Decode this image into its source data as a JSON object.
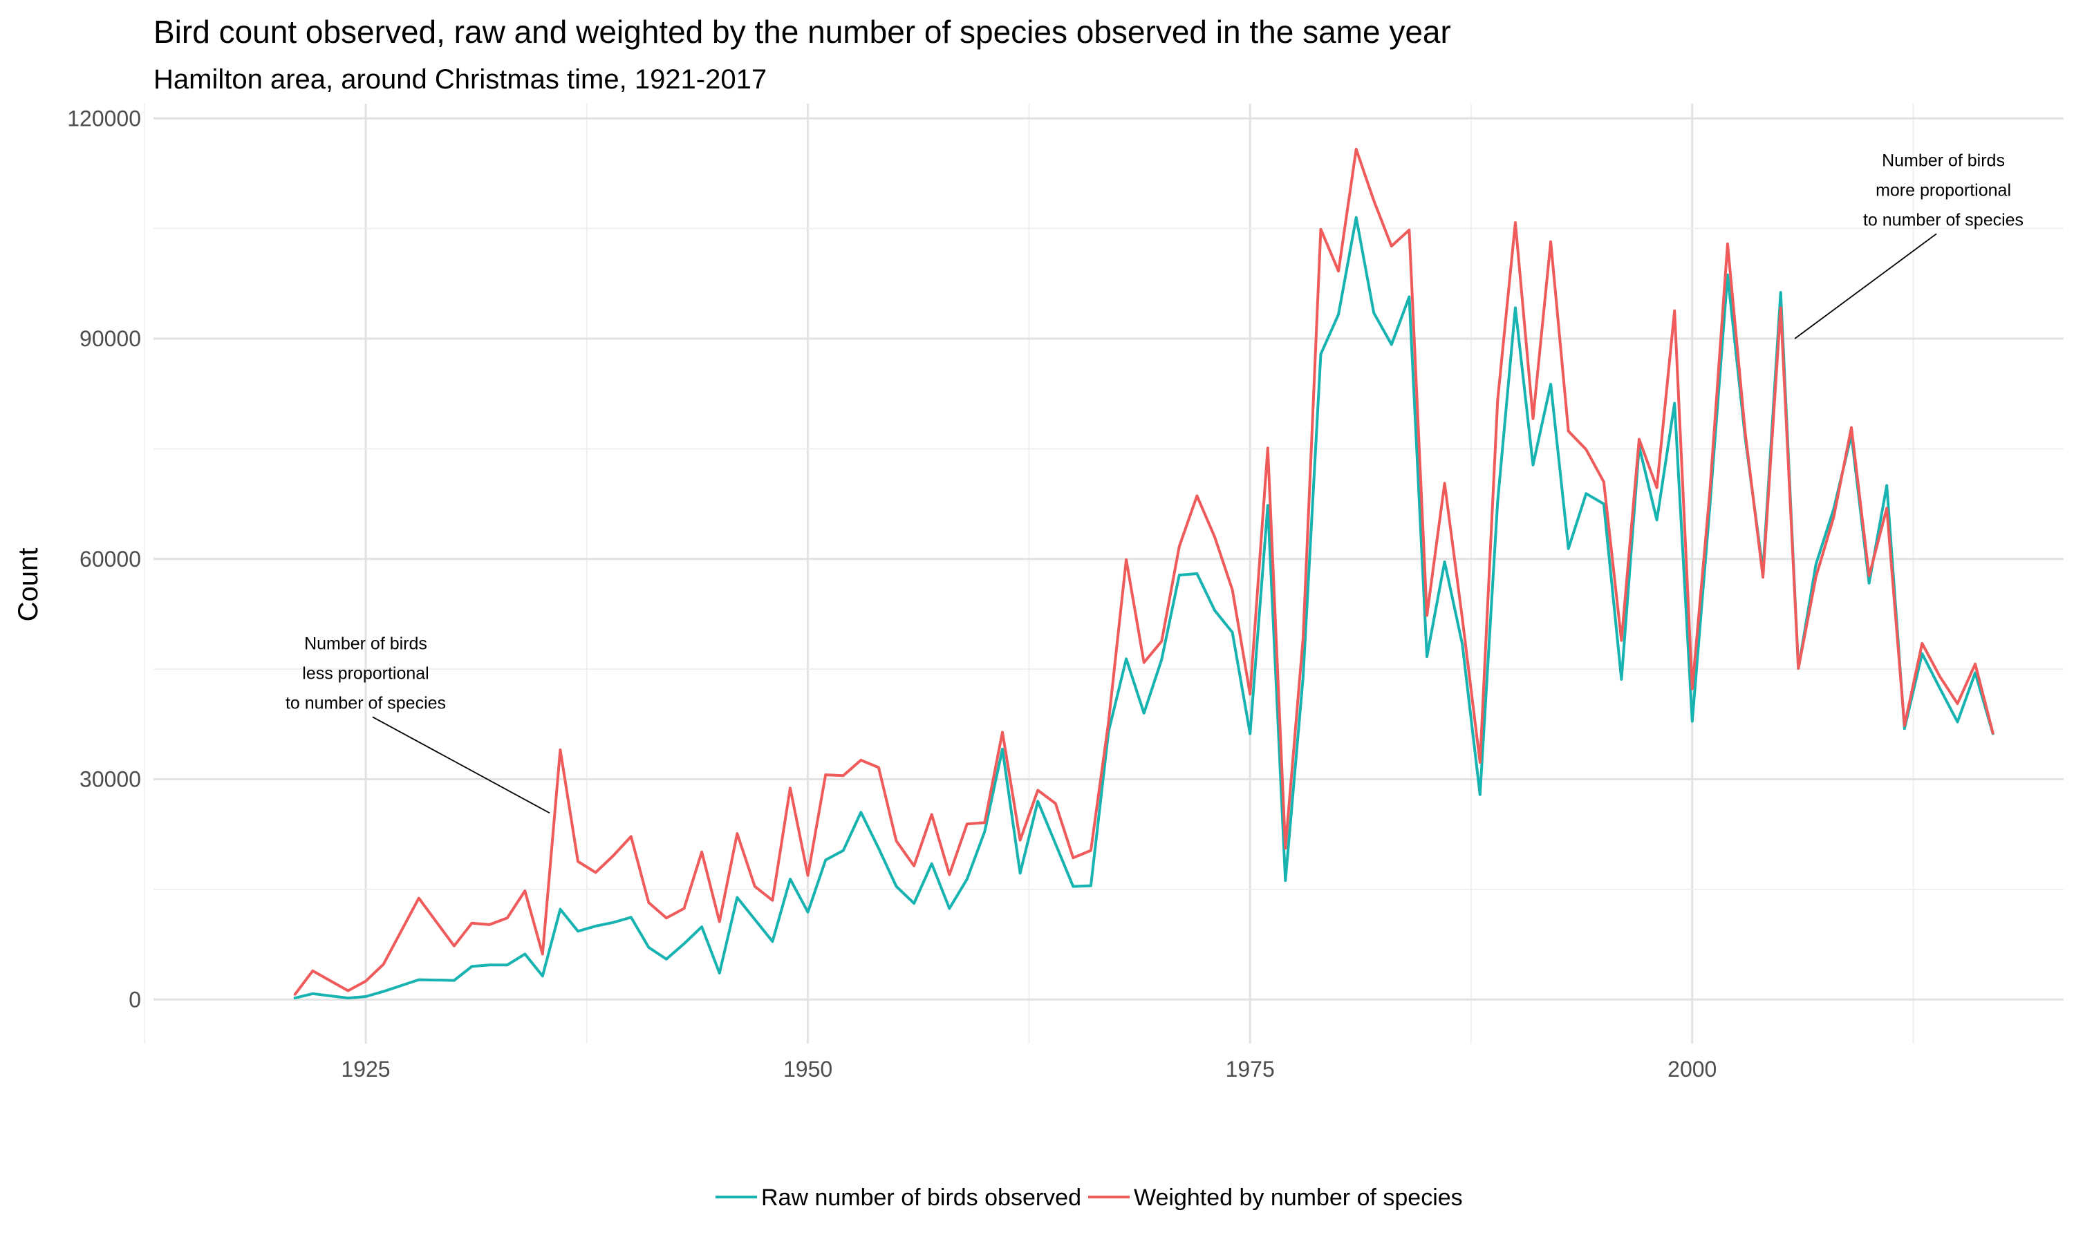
{
  "chart_data": {
    "type": "line",
    "title": "Bird count observed, raw and weighted by the number of species observed in the same year",
    "subtitle": "Hamilton area, around Christmas time, 1921-2017",
    "xlabel": "",
    "ylabel": "Count",
    "xlim": [
      1913,
      2021
    ],
    "ylim": [
      -6000,
      122000
    ],
    "x_ticks": [
      1925,
      1950,
      1975,
      2000
    ],
    "y_ticks": [
      0,
      30000,
      60000,
      90000,
      120000
    ],
    "x_tick_labels": [
      "1925",
      "1950",
      "1975",
      "2000"
    ],
    "y_tick_labels": [
      "0",
      "30000",
      "60000",
      "90000",
      "120000"
    ],
    "grid": true,
    "legend_position": "bottom",
    "series": [
      {
        "name": "Raw number of birds observed",
        "color": "#17b3b0",
        "x": [
          1921,
          1922,
          1924,
          1925,
          1926,
          1928,
          1930,
          1931,
          1932,
          1933,
          1934,
          1935,
          1936,
          1937,
          1938,
          1939,
          1940,
          1941,
          1942,
          1943,
          1944,
          1945,
          1946,
          1947,
          1948,
          1949,
          1950,
          1951,
          1952,
          1953,
          1954,
          1955,
          1956,
          1957,
          1958,
          1959,
          1960,
          1961,
          1962,
          1963,
          1964,
          1965,
          1966,
          1967,
          1968,
          1969,
          1970,
          1971,
          1972,
          1973,
          1974,
          1975,
          1976,
          1977,
          1978,
          1979,
          1980,
          1981,
          1982,
          1983,
          1984,
          1985,
          1986,
          1987,
          1988,
          1989,
          1990,
          1991,
          1992,
          1993,
          1994,
          1995,
          1996,
          1997,
          1998,
          1999,
          2000,
          2001,
          2002,
          2003,
          2004,
          2005,
          2006,
          2007,
          2008,
          2009,
          2010,
          2011,
          2012,
          2013,
          2014,
          2015,
          2016,
          2017
        ],
        "values": [
          200,
          800,
          200,
          400,
          1100,
          2700,
          2600,
          4500,
          4700,
          4700,
          6200,
          3200,
          12300,
          9300,
          10000,
          10500,
          11200,
          7100,
          5500,
          7600,
          9900,
          3600,
          13900,
          10900,
          7900,
          16400,
          11900,
          19000,
          20300,
          25500,
          20600,
          15400,
          13100,
          18500,
          12400,
          16400,
          22900,
          34100,
          17200,
          27000,
          21200,
          15400,
          15500,
          36500,
          46400,
          39000,
          46300,
          57800,
          58000,
          53000,
          50000,
          36200,
          67300,
          16200,
          43900,
          87900,
          93300,
          106500,
          93500,
          89200,
          95700,
          46700,
          59600,
          48400,
          27900,
          67800,
          94200,
          72800,
          83800,
          61400,
          68900,
          67500,
          43600,
          75300,
          65300,
          81200,
          37900,
          67200,
          98700,
          76400,
          58400,
          96300,
          45100,
          59300,
          66800,
          76900,
          56700,
          70000,
          36900,
          47100,
          42400,
          37800,
          44500,
          36200
        ]
      },
      {
        "name": "Weighted by number of species",
        "color": "#ef5b5b",
        "x": [
          1921,
          1922,
          1924,
          1925,
          1926,
          1928,
          1930,
          1931,
          1932,
          1933,
          1934,
          1935,
          1936,
          1937,
          1938,
          1939,
          1940,
          1941,
          1942,
          1943,
          1944,
          1945,
          1946,
          1947,
          1948,
          1949,
          1950,
          1951,
          1952,
          1953,
          1954,
          1955,
          1956,
          1957,
          1958,
          1959,
          1960,
          1961,
          1962,
          1963,
          1964,
          1965,
          1966,
          1967,
          1968,
          1969,
          1970,
          1971,
          1972,
          1973,
          1974,
          1975,
          1976,
          1977,
          1978,
          1979,
          1980,
          1981,
          1982,
          1983,
          1984,
          1985,
          1986,
          1987,
          1988,
          1989,
          1990,
          1991,
          1992,
          1993,
          1994,
          1995,
          1996,
          1997,
          1998,
          1999,
          2000,
          2001,
          2002,
          2003,
          2004,
          2005,
          2006,
          2007,
          2008,
          2009,
          2010,
          2011,
          2012,
          2013,
          2014,
          2015,
          2016,
          2017
        ],
        "values": [
          700,
          3900,
          1200,
          2500,
          4800,
          13800,
          7300,
          10400,
          10200,
          11100,
          14800,
          6200,
          34000,
          18800,
          17300,
          19600,
          22200,
          13200,
          11100,
          12400,
          20100,
          10600,
          22600,
          15400,
          13500,
          28800,
          16900,
          30600,
          30500,
          32600,
          31600,
          21600,
          18200,
          25200,
          17000,
          23900,
          24100,
          36400,
          21700,
          28500,
          26700,
          19300,
          20300,
          37800,
          59900,
          45900,
          48800,
          61700,
          68600,
          63000,
          55800,
          41600,
          75100,
          20600,
          49200,
          104900,
          99200,
          115800,
          108800,
          102600,
          104800,
          52300,
          70300,
          51900,
          32300,
          81600,
          105800,
          79100,
          103200,
          77400,
          74900,
          70500,
          48900,
          76300,
          69700,
          93800,
          42300,
          69200,
          102900,
          77100,
          57500,
          94200,
          45100,
          57600,
          65700,
          77900,
          57700,
          66900,
          37300,
          48500,
          44000,
          40300,
          45700,
          36300
        ]
      }
    ],
    "annotations": [
      {
        "lines": [
          "Number of birds",
          "less proportional",
          "to number of species"
        ],
        "x": 1925,
        "y": 47700,
        "arrow_to": [
          1935.4,
          25400
        ]
      },
      {
        "lines": [
          "Number of birds",
          "more proportional",
          "to number of species"
        ],
        "x": 2014.2,
        "y": 113500,
        "arrow_to": [
          2005.8,
          90000
        ]
      }
    ]
  }
}
